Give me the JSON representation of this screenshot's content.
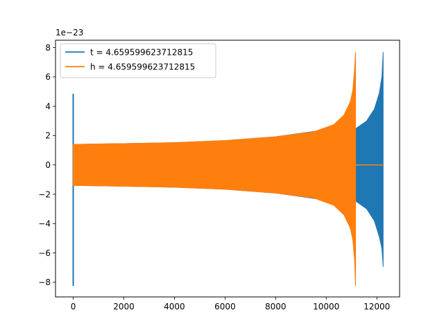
{
  "chart_data": {
    "type": "line",
    "title": "",
    "xlabel": "",
    "ylabel": "",
    "y_offset_label": "1e−23",
    "xlim": [
      -700,
      12900
    ],
    "ylim": [
      -9.0,
      8.5
    ],
    "x_ticks": [
      0,
      2000,
      4000,
      6000,
      8000,
      10000,
      12000
    ],
    "x_tick_labels": [
      "0",
      "2000",
      "4000",
      "6000",
      "8000",
      "10000",
      "12000"
    ],
    "y_ticks": [
      -8,
      -6,
      -4,
      -2,
      0,
      2,
      4,
      6,
      8
    ],
    "y_tick_labels": [
      "−8",
      "−6",
      "−4",
      "−2",
      "0",
      "2",
      "4",
      "6",
      "8"
    ],
    "grid": false,
    "legend_position": "top-left",
    "series": [
      {
        "name": "t = 4.659599623712815",
        "color": "#1f77b4",
        "glitch": {
          "x": 0,
          "max": 4.85,
          "min": -8.25
        },
        "envelope": [
          {
            "x": 0,
            "max": 1.4,
            "min": -1.4
          },
          {
            "x": 2000,
            "max": 1.45,
            "min": -1.45
          },
          {
            "x": 4000,
            "max": 1.52,
            "min": -1.52
          },
          {
            "x": 6000,
            "max": 1.66,
            "min": -1.66
          },
          {
            "x": 8000,
            "max": 1.92,
            "min": -1.92
          },
          {
            "x": 10000,
            "max": 2.4,
            "min": -2.4
          },
          {
            "x": 11150,
            "max": 2.45,
            "min": -2.45
          },
          {
            "x": 11600,
            "max": 3.0,
            "min": -3.0
          },
          {
            "x": 11900,
            "max": 3.8,
            "min": -3.8
          },
          {
            "x": 12100,
            "max": 4.9,
            "min": -4.9
          },
          {
            "x": 12200,
            "max": 6.0,
            "min": -5.7
          },
          {
            "x": 12250,
            "max": 7.7,
            "min": -6.95
          }
        ]
      },
      {
        "name": "h = 4.659599623712815",
        "color": "#ff7f0e",
        "envelope": [
          {
            "x": 0,
            "max": 1.4,
            "min": -1.4
          },
          {
            "x": 2000,
            "max": 1.45,
            "min": -1.45
          },
          {
            "x": 4000,
            "max": 1.52,
            "min": -1.52
          },
          {
            "x": 6000,
            "max": 1.66,
            "min": -1.66
          },
          {
            "x": 8000,
            "max": 1.92,
            "min": -1.92
          },
          {
            "x": 9500,
            "max": 2.25,
            "min": -2.25
          },
          {
            "x": 10300,
            "max": 2.75,
            "min": -2.75
          },
          {
            "x": 10700,
            "max": 3.4,
            "min": -3.4
          },
          {
            "x": 10950,
            "max": 4.3,
            "min": -4.3
          },
          {
            "x": 11050,
            "max": 5.1,
            "min": -5.1
          },
          {
            "x": 11120,
            "max": 6.5,
            "min": -6.5
          },
          {
            "x": 11160,
            "max": 7.7,
            "min": -8.25
          }
        ],
        "tail": {
          "x_start": 11160,
          "x_end": 12280,
          "y": 0
        }
      }
    ]
  }
}
